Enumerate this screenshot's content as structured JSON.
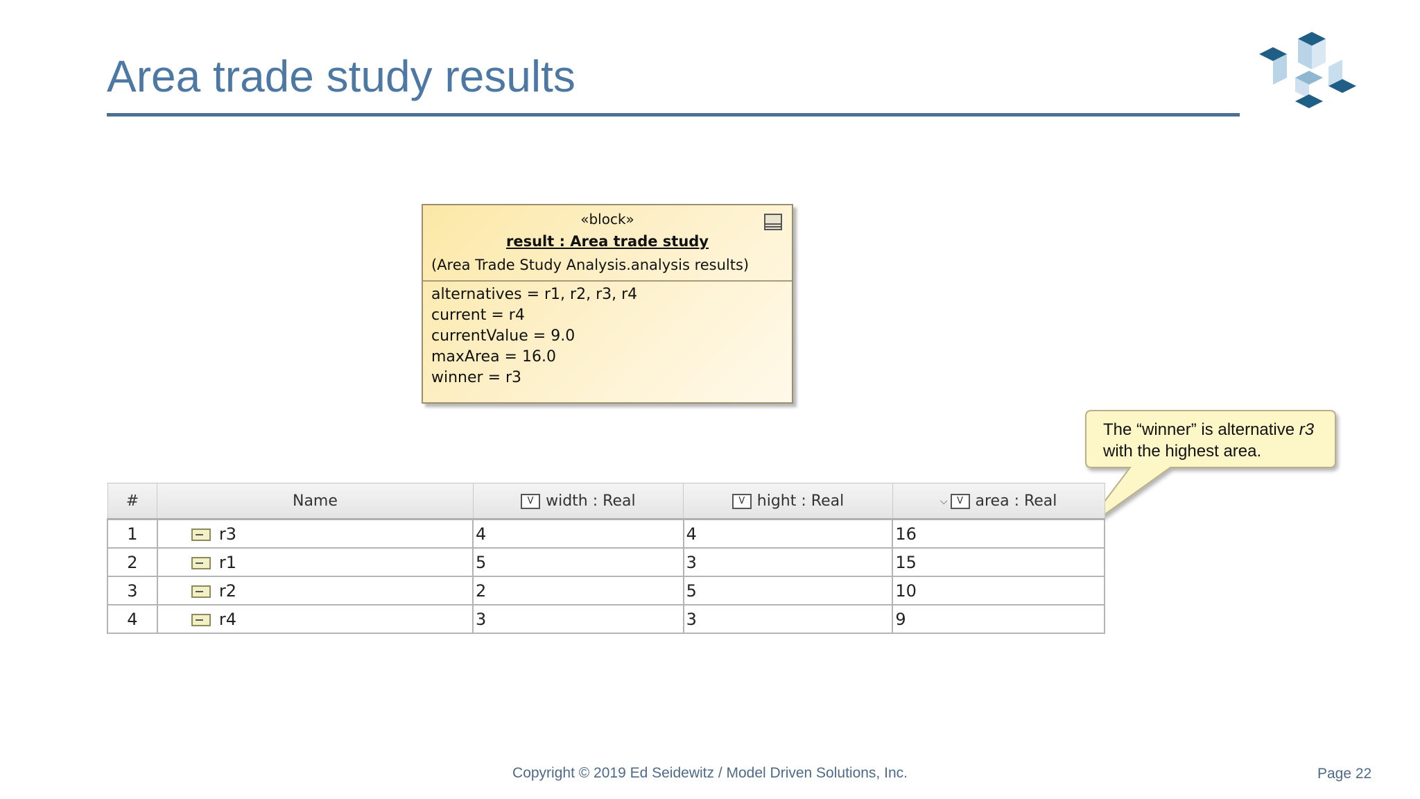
{
  "slide": {
    "title": "Area trade study results",
    "footer": "Copyright © 2019 Ed Seidewitz / Model Driven Solutions, Inc.",
    "page": "Page 22"
  },
  "block": {
    "stereotype": "«block»",
    "instance_name": "result : Area trade study",
    "classifier": "(Area Trade Study Analysis.analysis results)",
    "attributes": [
      "alternatives = r1, r2, r3, r4",
      "current = r4",
      "currentValue = 9.0",
      "maxArea = 16.0",
      "winner = r3"
    ]
  },
  "callout": {
    "text_prefix": "The “winner” is alternative",
    "text_italic": "r3",
    "text_suffix": "with the highest area."
  },
  "table": {
    "headers": [
      "#",
      "Name",
      "width : Real",
      "hight : Real",
      "area : Real"
    ],
    "value_badge": "V",
    "sort_glyph": "⌵",
    "rows": [
      {
        "num": "1",
        "name": "r3",
        "width": "4",
        "hight": "4",
        "area": "16"
      },
      {
        "num": "2",
        "name": "r1",
        "width": "5",
        "hight": "3",
        "area": "15"
      },
      {
        "num": "3",
        "name": "r2",
        "width": "2",
        "hight": "5",
        "area": "10"
      },
      {
        "num": "4",
        "name": "r4",
        "width": "3",
        "hight": "3",
        "area": "9"
      }
    ]
  },
  "colors": {
    "title": "#4d78a3",
    "rule": "#4a6f92",
    "block_fill": "#fbe8a6",
    "callout_fill": "#fdf7c8"
  }
}
